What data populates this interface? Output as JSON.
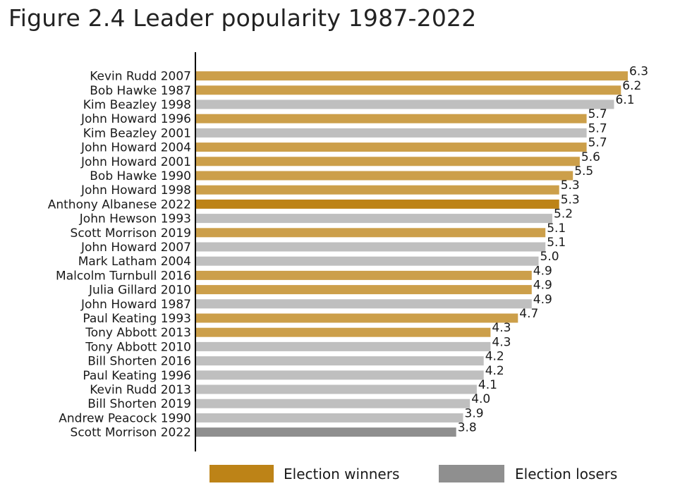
{
  "title": "Figure 2.4 Leader popularity 1987-2022",
  "colors": {
    "winner": "#cc9f4a",
    "winner_highlight": "#bd8317",
    "loser": "#bfbfbf",
    "loser_highlight": "#8f8f8f",
    "axis": "#000000"
  },
  "legend": {
    "winner_label": "Election winners",
    "loser_label": "Election losers",
    "winner_swatch_color": "#bd8317",
    "loser_swatch_color": "#8f8f8f"
  },
  "chart_data": {
    "type": "bar",
    "orientation": "horizontal",
    "title": "Figure 2.4 Leader popularity 1987-2022",
    "xlabel": "",
    "ylabel": "",
    "xlim": [
      0,
      6.5
    ],
    "grid": false,
    "legend_position": "bottom",
    "categories": [
      "Kevin Rudd 2007",
      "Bob Hawke 1987",
      "Kim Beazley 1998",
      "John Howard 1996",
      "Kim Beazley 2001",
      "John Howard 2004",
      "John Howard 2001",
      "Bob Hawke 1990",
      "John Howard 1998",
      "Anthony Albanese 2022",
      "John Hewson 1993",
      "Scott Morrison 2019",
      "John Howard 2007",
      "Mark Latham 2004",
      "Malcolm Turnbull 2016",
      "Julia Gillard 2010",
      "John Howard 1987",
      "Paul Keating 1993",
      "Tony Abbott 2013",
      "Tony Abbott 2010",
      "Bill Shorten 2016",
      "Paul Keating 1996",
      "Kevin Rudd 2013",
      "Bill Shorten 2019",
      "Andrew Peacock 1990",
      "Scott Morrison 2022"
    ],
    "values": [
      6.3,
      6.2,
      6.1,
      5.7,
      5.7,
      5.7,
      5.6,
      5.5,
      5.3,
      5.3,
      5.2,
      5.1,
      5.1,
      5.0,
      4.9,
      4.9,
      4.9,
      4.7,
      4.3,
      4.3,
      4.2,
      4.2,
      4.1,
      4.0,
      3.9,
      3.8
    ],
    "value_labels": [
      "6.3",
      "6.2",
      "6.1",
      "5.7",
      "5.7",
      "5.7",
      "5.6",
      "5.5",
      "5.3",
      "5.3",
      "5.2",
      "5.1",
      "5.1",
      "5.0",
      "4.9",
      "4.9",
      "4.9",
      "4.7",
      "4.3",
      "4.3",
      "4.2",
      "4.2",
      "4.1",
      "4.0",
      "3.9",
      "3.8"
    ],
    "groups": [
      "winner",
      "winner",
      "loser",
      "winner",
      "loser",
      "winner",
      "winner",
      "winner",
      "winner",
      "winner_highlight",
      "loser",
      "winner",
      "loser",
      "loser",
      "winner",
      "winner",
      "loser",
      "winner",
      "winner",
      "loser",
      "loser",
      "loser",
      "loser",
      "loser",
      "loser",
      "loser_highlight"
    ]
  }
}
